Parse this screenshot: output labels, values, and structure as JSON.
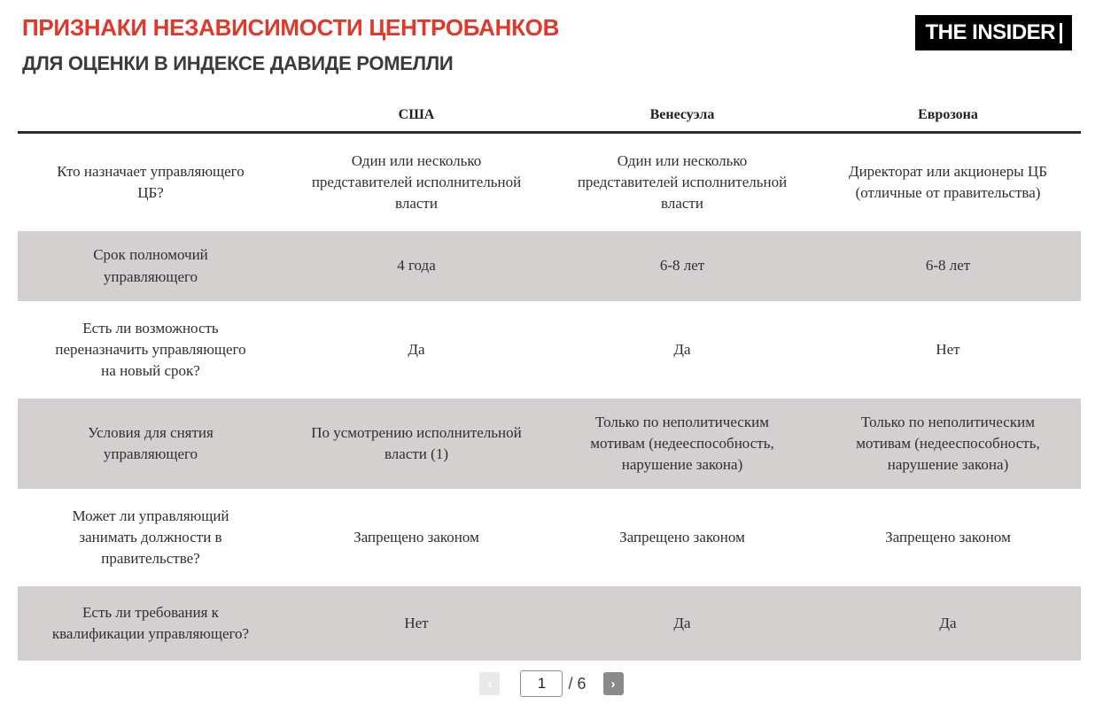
{
  "header": {
    "title": "ПРИЗНАКИ НЕЗАВИСИМОСТИ ЦЕНТРОБАНКОВ",
    "subtitle": "ДЛЯ ОЦЕНКИ В ИНДЕКСЕ ДАВИДЕ РОМЕЛЛИ",
    "logo_text": "THE INSIDER"
  },
  "colors": {
    "accent_red": "#e0392b",
    "row_shaded_gray": "#d3d0cf",
    "header_rule_dark": "#2d2d2d",
    "logo_bg": "#000000"
  },
  "table": {
    "columns": [
      "США",
      "Венесуэла",
      "Еврозона"
    ],
    "rows": [
      {
        "label": "Кто назначает управляющего ЦБ?",
        "values": [
          "Один или несколько представителей исполнительной власти",
          "Один или несколько представителей исполнительной власти",
          "Директорат или акционеры ЦБ (отличные от правительства)"
        ],
        "shaded": false
      },
      {
        "label": "Срок полномочий управляющего",
        "values": [
          "4 года",
          "6-8 лет",
          "6-8 лет"
        ],
        "shaded": true
      },
      {
        "label": "Есть ли возможность переназначить управляющего на новый срок?",
        "values": [
          "Да",
          "Да",
          "Нет"
        ],
        "shaded": false
      },
      {
        "label": "Условия для снятия управляющего",
        "values": [
          "По усмотрению исполнительной власти (1)",
          "Только по неполитическим мотивам (недееспособность, нарушение закона)",
          "Только по неполитическим мотивам (недееспособность, нарушение закона)"
        ],
        "shaded": true
      },
      {
        "label": "Может ли управляющий занимать должности в правительстве?",
        "values": [
          "Запрещено законом",
          "Запрещено законом",
          "Запрещено законом"
        ],
        "shaded": false
      },
      {
        "label": "Есть ли требования к квалификации управляющего?",
        "values": [
          "Нет",
          "Да",
          "Да"
        ],
        "shaded": true
      }
    ]
  },
  "pagination": {
    "prev_icon": "‹",
    "next_icon": "›",
    "current_page": "1",
    "total_label": "/ 6"
  },
  "chart_data": {
    "type": "table",
    "title": "ПРИЗНАКИ НЕЗАВИСИМОСТИ ЦЕНТРОБАНКОВ",
    "subtitle": "ДЛЯ ОЦЕНКИ В ИНДЕКСЕ ДАВИДЕ РОМЕЛЛИ",
    "columns": [
      "",
      "США",
      "Венесуэла",
      "Еврозона"
    ],
    "rows": [
      [
        "Кто назначает управляющего ЦБ?",
        "Один или несколько представителей исполнительной власти",
        "Один или несколько представителей исполнительной власти",
        "Директорат или акционеры ЦБ (отличные от правительства)"
      ],
      [
        "Срок полномочий управляющего",
        "4 года",
        "6-8 лет",
        "6-8 лет"
      ],
      [
        "Есть ли возможность переназначить управляющего на новый срок?",
        "Да",
        "Да",
        "Нет"
      ],
      [
        "Условия для снятия управляющего",
        "По усмотрению исполнительной власти (1)",
        "Только по неполитическим мотивам (недееспособность, нарушение закона)",
        "Только по неполитическим мотивам (недееспособность, нарушение закона)"
      ],
      [
        "Может ли управляющий занимать должности в правительстве?",
        "Запрещено законом",
        "Запрещено законом",
        "Запрещено законом"
      ],
      [
        "Есть ли требования к квалификации управляющего?",
        "Нет",
        "Да",
        "Да"
      ]
    ],
    "layout": "alternating rows shaded gray (rows 2,4,6); thick dark rule under column headers; pagination 1 of 6 below"
  }
}
